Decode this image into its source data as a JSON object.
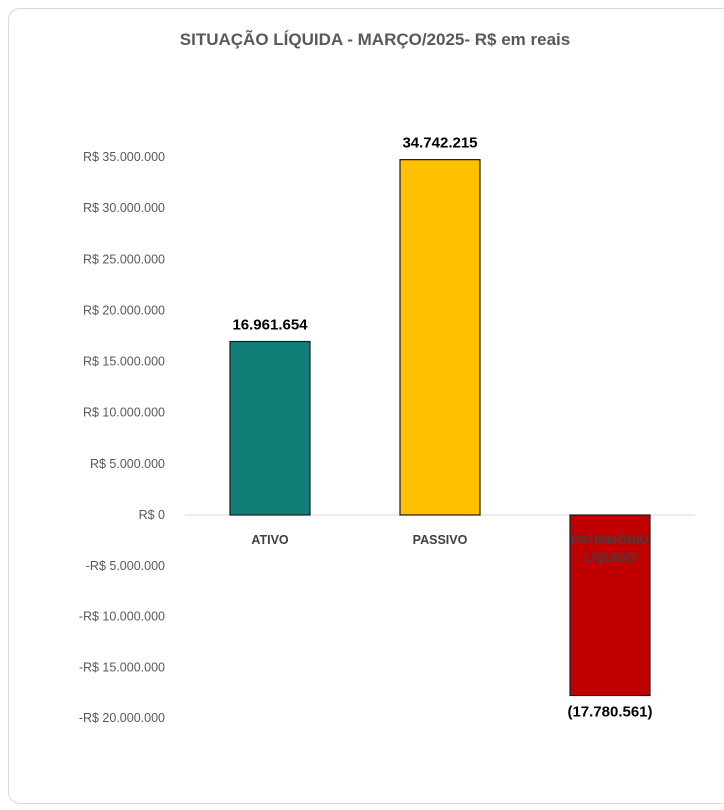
{
  "chart_data": {
    "type": "bar",
    "title": "SITUAÇÃO LÍQUIDA - MARÇO/2025- R$ em reais",
    "xlabel": "",
    "ylabel": "",
    "categories": [
      "ATIVO",
      "PASSIVO",
      "PATRIMÔNIO LÍQUIDO"
    ],
    "values": [
      16961654,
      34742215,
      -17780561
    ],
    "data_labels": [
      "16.961.654",
      "34.742.215",
      "(17.780.561)"
    ],
    "colors": [
      "#0f7f78",
      "#ffc000",
      "#c00000"
    ],
    "ylim": [
      -20000000,
      35000000
    ],
    "yticks": [
      35000000,
      30000000,
      25000000,
      20000000,
      15000000,
      10000000,
      5000000,
      0,
      -5000000,
      -10000000,
      -15000000,
      -20000000
    ],
    "ytick_labels": [
      "R$ 35.000.000",
      "R$ 30.000.000",
      "R$ 25.000.000",
      "R$ 20.000.000",
      "R$ 15.000.000",
      "R$ 10.000.000",
      "R$ 5.000.000",
      "R$ 0",
      "-R$ 5.000.000",
      "-R$ 10.000.000",
      "-R$ 15.000.000",
      "-R$ 20.000.000"
    ],
    "grid": false,
    "legend": "none"
  }
}
